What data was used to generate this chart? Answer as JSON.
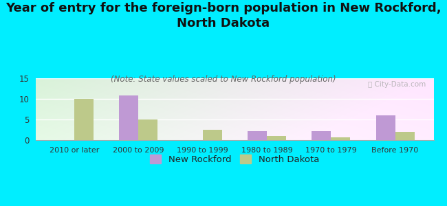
{
  "title": "Year of entry for the foreign-born population in New Rockford,\nNorth Dakota",
  "subtitle": "(Note: State values scaled to New Rockford population)",
  "categories": [
    "2010 or later",
    "2000 to 2009",
    "1990 to 1999",
    "1980 to 1989",
    "1970 to 1979",
    "Before 1970"
  ],
  "new_rockford": [
    0,
    10.8,
    0,
    2.2,
    2.2,
    6.0
  ],
  "north_dakota": [
    10.0,
    5.0,
    2.5,
    1.0,
    0.6,
    2.0
  ],
  "bar_color_nr": "#bf99d4",
  "bar_color_nd": "#bdc98a",
  "background_color": "#00eeff",
  "ylim": [
    0,
    15
  ],
  "yticks": [
    0,
    5,
    10,
    15
  ],
  "title_fontsize": 13,
  "subtitle_fontsize": 8.5,
  "legend_labels": [
    "New Rockford",
    "North Dakota"
  ],
  "watermark": "ⓘ City-Data.com"
}
